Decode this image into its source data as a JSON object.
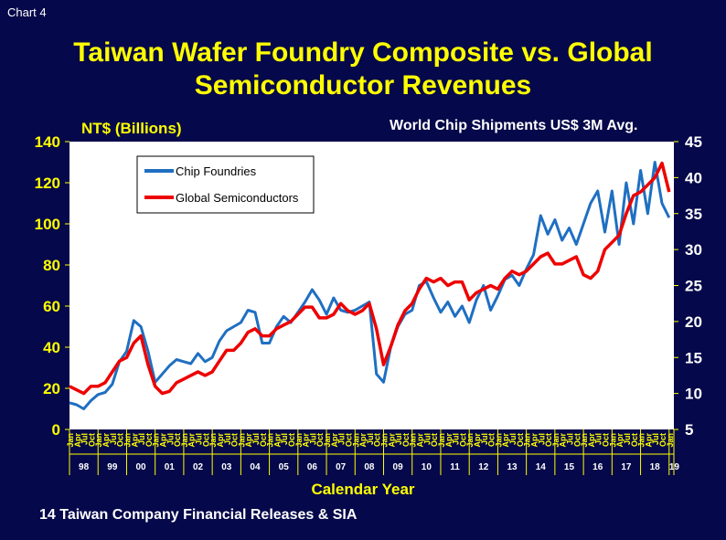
{
  "corner_label": "Chart 4",
  "title_line1": "Taiwan Wafer Foundry Composite vs. Global",
  "title_line2": "Semiconductor Revenues",
  "source_note": "14 Taiwan Company Financial Releases & SIA",
  "colors": {
    "background": "#05084a",
    "title": "#ffff00",
    "foundries": "#1f6fc2",
    "global": "#ee0000",
    "ticks": "#ffff00",
    "plot_bg": "#ffffff"
  },
  "chart_data": {
    "type": "line",
    "xlabel": "Calendar Year",
    "ylabel_left": "NT$ (Billions)",
    "ylabel_right": "World Chip Shipments US$ 3M Avg.",
    "ylim_left": [
      0,
      140
    ],
    "ylim_right": [
      5,
      45
    ],
    "yticks_left": [
      "0",
      "20",
      "40",
      "60",
      "80",
      "100",
      "120",
      "140"
    ],
    "yticks_right": [
      "5",
      "10",
      "15",
      "20",
      "25",
      "30",
      "35",
      "40",
      "45"
    ],
    "month_labels": [
      "Jan",
      "Apr",
      "Jul",
      "Oct"
    ],
    "year_labels": [
      "98",
      "99",
      "00",
      "01",
      "02",
      "03",
      "04",
      "05",
      "06",
      "07",
      "08",
      "09",
      "10",
      "11",
      "12",
      "13",
      "14",
      "15",
      "16",
      "17",
      "18",
      "19"
    ],
    "legend": [
      "Chip Foundries",
      "Global Semiconductors"
    ],
    "legend_position": "top-left",
    "grid": false,
    "series": [
      {
        "name": "Chip Foundries",
        "axis": "left",
        "x": [
          1998.0,
          1998.25,
          1998.5,
          1998.75,
          1999.0,
          1999.25,
          1999.5,
          1999.75,
          2000.0,
          2000.25,
          2000.5,
          2000.75,
          2001.0,
          2001.25,
          2001.5,
          2001.75,
          2002.0,
          2002.25,
          2002.5,
          2002.75,
          2003.0,
          2003.25,
          2003.5,
          2003.75,
          2004.0,
          2004.25,
          2004.5,
          2004.75,
          2005.0,
          2005.25,
          2005.5,
          2005.75,
          2006.0,
          2006.25,
          2006.5,
          2006.75,
          2007.0,
          2007.25,
          2007.5,
          2007.75,
          2008.0,
          2008.25,
          2008.5,
          2008.75,
          2009.0,
          2009.25,
          2009.5,
          2009.75,
          2010.0,
          2010.25,
          2010.5,
          2010.75,
          2011.0,
          2011.25,
          2011.5,
          2011.75,
          2012.0,
          2012.25,
          2012.5,
          2012.75,
          2013.0,
          2013.25,
          2013.5,
          2013.75,
          2014.0,
          2014.25,
          2014.5,
          2014.75,
          2015.0,
          2015.25,
          2015.5,
          2015.75,
          2016.0,
          2016.25,
          2016.5,
          2016.75,
          2017.0,
          2017.25,
          2017.5,
          2017.75,
          2018.0,
          2018.25,
          2018.5,
          2018.75,
          2019.0
        ],
        "values": [
          13,
          12,
          10,
          14,
          17,
          18,
          22,
          33,
          38,
          53,
          50,
          38,
          23,
          27,
          31,
          34,
          33,
          32,
          37,
          33,
          35,
          43,
          48,
          50,
          52,
          58,
          57,
          42,
          42,
          50,
          55,
          52,
          57,
          62,
          68,
          63,
          56,
          64,
          58,
          57,
          58,
          60,
          62,
          27,
          23,
          40,
          50,
          56,
          58,
          70,
          72,
          64,
          57,
          62,
          55,
          60,
          52,
          63,
          70,
          58,
          65,
          73,
          75,
          70,
          78,
          85,
          104,
          95,
          102,
          92,
          98,
          90,
          100,
          110,
          116,
          96,
          116,
          90,
          120,
          100,
          126,
          105,
          130,
          110,
          103
        ]
      },
      {
        "name": "Global Semiconductors",
        "axis": "right",
        "x": [
          1998.0,
          1998.25,
          1998.5,
          1998.75,
          1999.0,
          1999.25,
          1999.5,
          1999.75,
          2000.0,
          2000.25,
          2000.5,
          2000.75,
          2001.0,
          2001.25,
          2001.5,
          2001.75,
          2002.0,
          2002.25,
          2002.5,
          2002.75,
          2003.0,
          2003.25,
          2003.5,
          2003.75,
          2004.0,
          2004.25,
          2004.5,
          2004.75,
          2005.0,
          2005.25,
          2005.5,
          2005.75,
          2006.0,
          2006.25,
          2006.5,
          2006.75,
          2007.0,
          2007.25,
          2007.5,
          2007.75,
          2008.0,
          2008.25,
          2008.5,
          2008.75,
          2009.0,
          2009.25,
          2009.5,
          2009.75,
          2010.0,
          2010.25,
          2010.5,
          2010.75,
          2011.0,
          2011.25,
          2011.5,
          2011.75,
          2012.0,
          2012.25,
          2012.5,
          2012.75,
          2013.0,
          2013.25,
          2013.5,
          2013.75,
          2014.0,
          2014.25,
          2014.5,
          2014.75,
          2015.0,
          2015.25,
          2015.5,
          2015.75,
          2016.0,
          2016.25,
          2016.5,
          2016.75,
          2017.0,
          2017.25,
          2017.5,
          2017.75,
          2018.0,
          2018.25,
          2018.5,
          2018.75,
          2019.0
        ],
        "values": [
          11,
          10.5,
          10,
          11,
          11,
          11.5,
          13,
          14.5,
          15,
          17,
          18,
          14,
          11,
          10,
          10.3,
          11.5,
          12,
          12.5,
          13,
          12.5,
          13,
          14.5,
          16,
          16,
          17,
          18.5,
          19,
          18,
          18,
          19,
          19.5,
          20,
          21,
          22,
          22,
          20.5,
          20.5,
          21,
          22.5,
          21.5,
          21,
          21.5,
          22.5,
          19,
          14,
          16.5,
          19.5,
          21.5,
          22.5,
          24.5,
          26,
          25.5,
          26,
          25,
          25.5,
          25.5,
          23,
          24,
          24.5,
          25,
          24.5,
          26,
          27,
          26.5,
          27,
          28,
          29,
          29.5,
          28,
          28,
          28.5,
          29,
          26.5,
          26,
          27,
          30,
          31,
          32,
          35,
          37.5,
          38,
          39,
          40,
          42,
          38
        ]
      }
    ]
  }
}
